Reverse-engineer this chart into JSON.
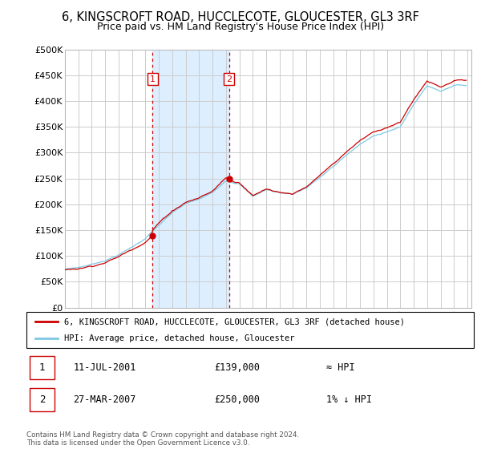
{
  "title_line1": "6, KINGSCROFT ROAD, HUCCLECOTE, GLOUCESTER, GL3 3RF",
  "title_line2": "Price paid vs. HM Land Registry's House Price Index (HPI)",
  "title_fontsize": 10.5,
  "subtitle_fontsize": 9,
  "ylabel_ticks": [
    "£0",
    "£50K",
    "£100K",
    "£150K",
    "£200K",
    "£250K",
    "£300K",
    "£350K",
    "£400K",
    "£450K",
    "£500K"
  ],
  "ylim": [
    0,
    500000
  ],
  "xlim_start": 1995.0,
  "xlim_end": 2025.3,
  "purchase1_x": 2001.53,
  "purchase1_y": 139000,
  "purchase2_x": 2007.24,
  "purchase2_y": 250000,
  "shade_color": "#ddeeff",
  "hpi_color": "#7ec8e3",
  "price_color": "#cc0000",
  "grid_color": "#cccccc",
  "legend_label_price": "6, KINGSCROFT ROAD, HUCCLECOTE, GLOUCESTER, GL3 3RF (detached house)",
  "legend_label_hpi": "HPI: Average price, detached house, Gloucester",
  "purchase1_date": "11-JUL-2001",
  "purchase1_price": "£139,000",
  "purchase1_hpi": "≈ HPI",
  "purchase2_date": "27-MAR-2007",
  "purchase2_price": "£250,000",
  "purchase2_hpi": "1% ↓ HPI",
  "footnote": "Contains HM Land Registry data © Crown copyright and database right 2024.\nThis data is licensed under the Open Government Licence v3.0."
}
